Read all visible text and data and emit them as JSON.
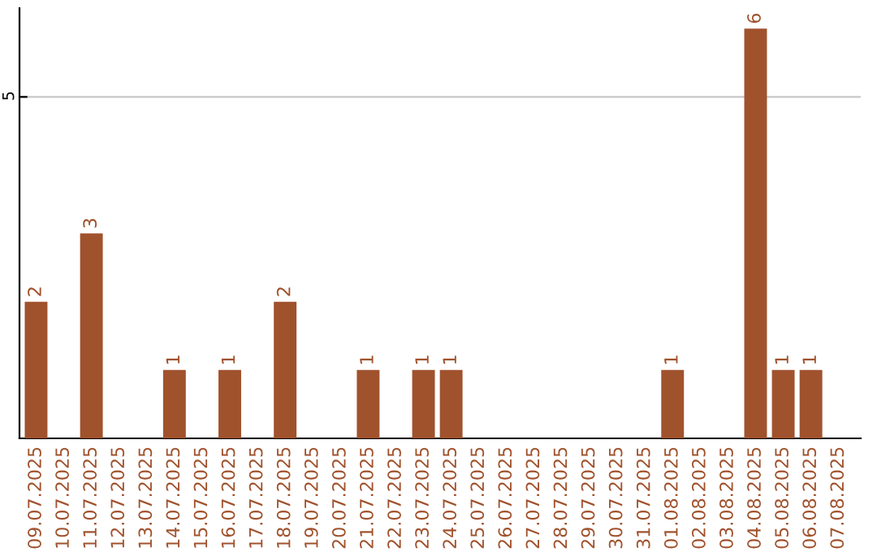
{
  "chart_data": {
    "type": "bar",
    "categories": [
      "09.07.2025",
      "10.07.2025",
      "11.07.2025",
      "12.07.2025",
      "13.07.2025",
      "14.07.2025",
      "15.07.2025",
      "16.07.2025",
      "17.07.2025",
      "18.07.2025",
      "19.07.2025",
      "20.07.2025",
      "21.07.2025",
      "22.07.2025",
      "23.07.2025",
      "24.07.2025",
      "25.07.2025",
      "26.07.2025",
      "27.07.2025",
      "28.07.2025",
      "29.07.2025",
      "30.07.2025",
      "31.07.2025",
      "01.08.2025",
      "02.08.2025",
      "03.08.2025",
      "04.08.2025",
      "05.08.2025",
      "06.08.2025",
      "07.08.2025"
    ],
    "values": [
      2,
      0,
      3,
      0,
      0,
      1,
      0,
      1,
      0,
      2,
      0,
      0,
      1,
      0,
      1,
      1,
      0,
      0,
      0,
      0,
      0,
      0,
      0,
      1,
      0,
      0,
      6,
      1,
      1,
      0
    ],
    "value_labels": [
      "2",
      null,
      "3",
      null,
      null,
      "1",
      null,
      "1",
      null,
      "2",
      null,
      null,
      "1",
      null,
      "1",
      "1",
      null,
      null,
      null,
      null,
      null,
      null,
      null,
      "1",
      null,
      null,
      "6",
      "1",
      "1",
      null
    ],
    "color": "#a0522d",
    "ylim": [
      0,
      6.3
    ],
    "yticks": [
      5
    ],
    "grid": "y",
    "legend": false
  }
}
